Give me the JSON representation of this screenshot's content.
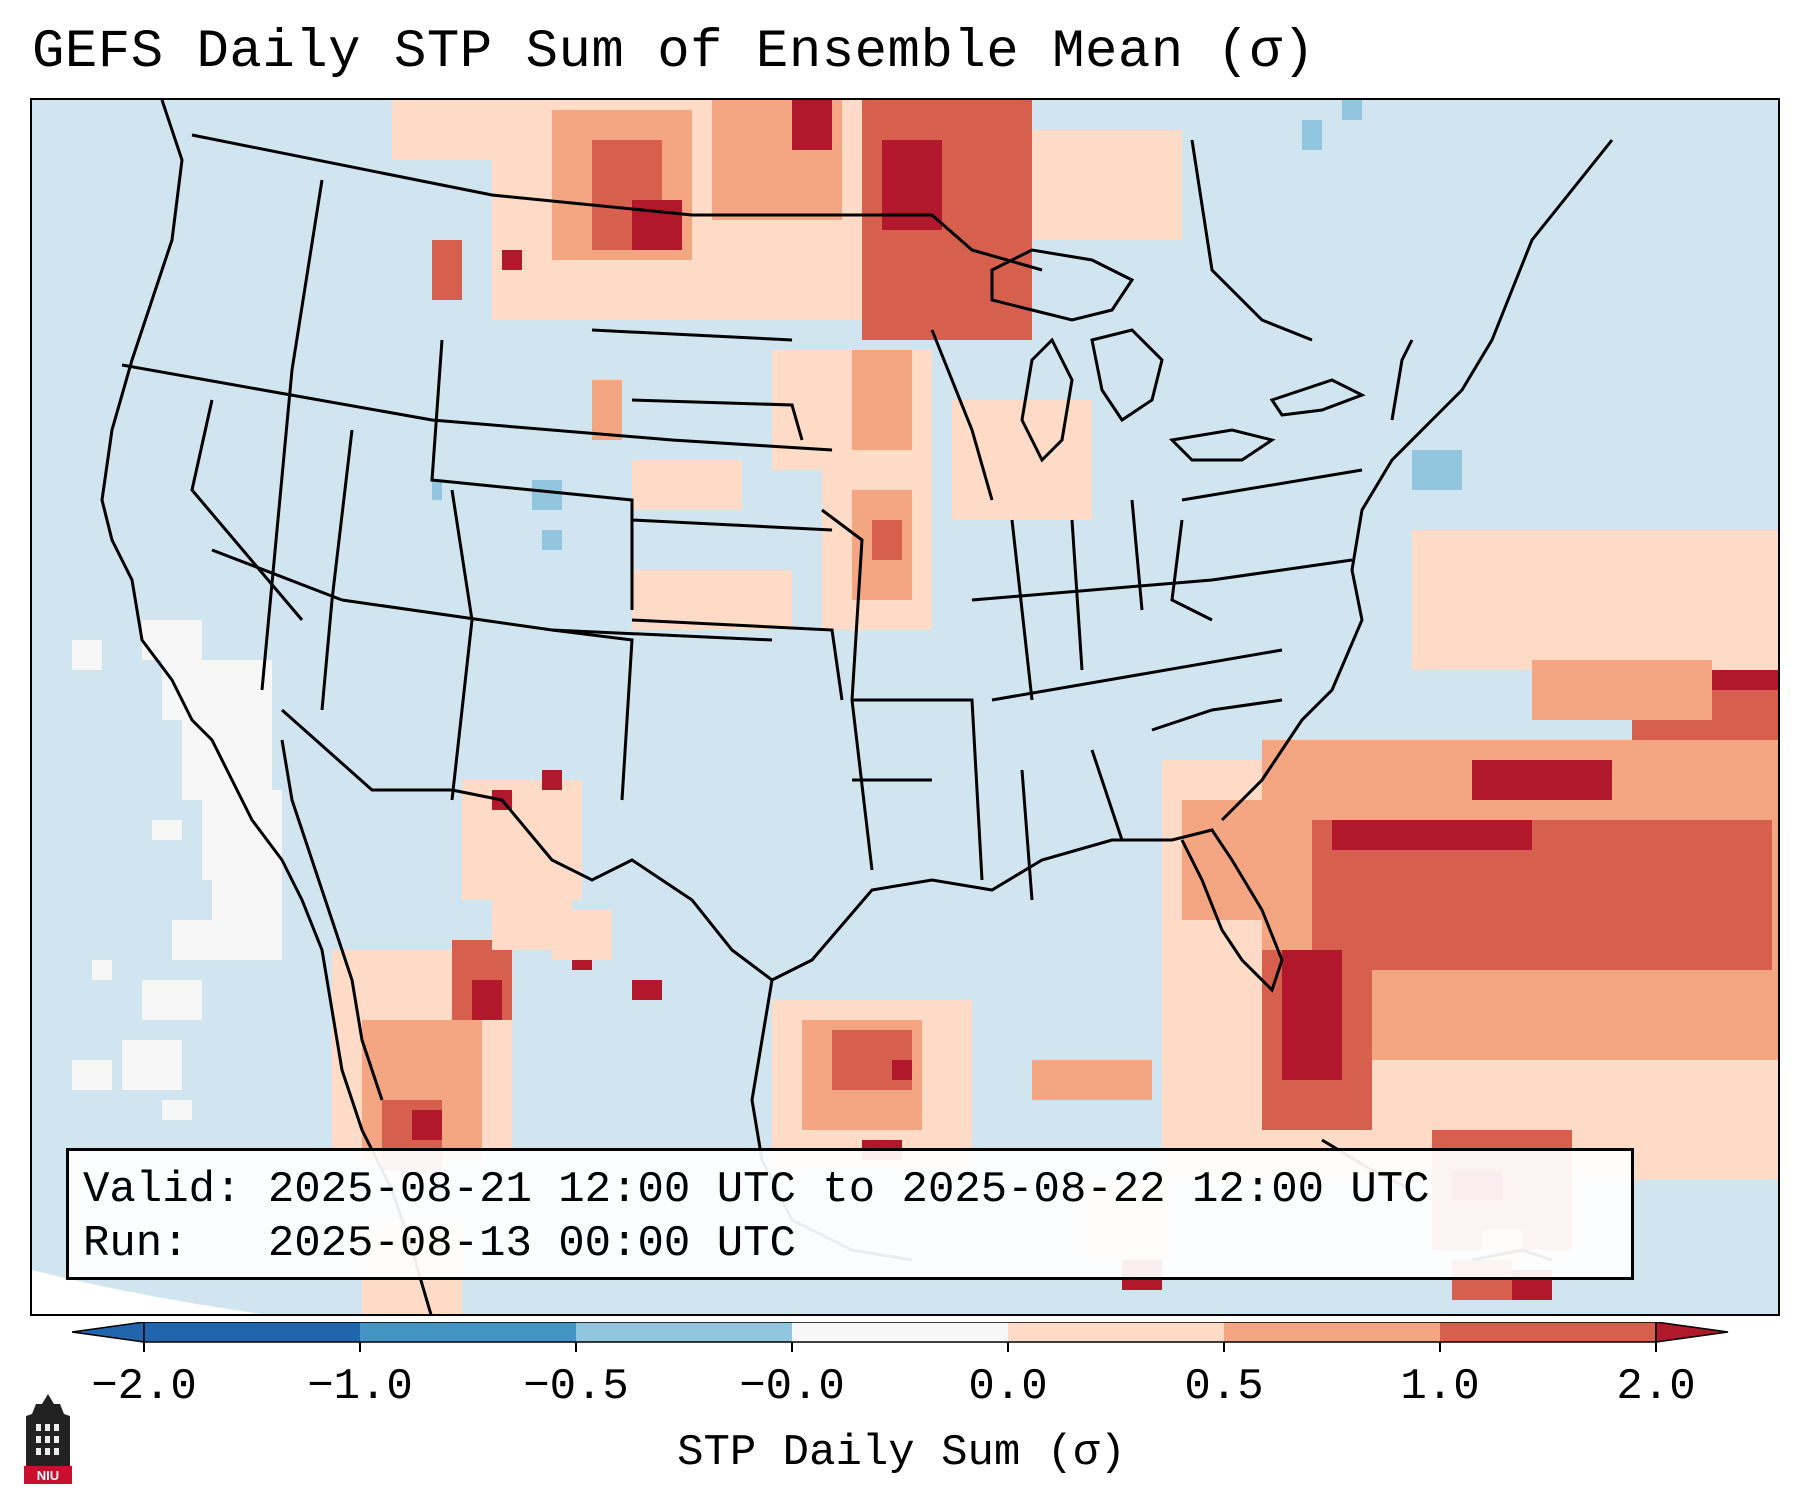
{
  "title": "GEFS Daily STP Sum of Ensemble Mean (σ)",
  "info": {
    "valid_line": "Valid: 2025-08-21 12:00 UTC to 2025-08-22 12:00 UTC",
    "run_line": "Run:   2025-08-13 00:00 UTC"
  },
  "colorbar": {
    "label": "STP Daily Sum (σ)",
    "ticks": [
      "−2.0",
      "−1.0",
      "−0.5",
      "−0.0",
      "0.0",
      "0.5",
      "1.0",
      "2.0"
    ],
    "bins": [
      {
        "range": "≤ -2.0",
        "color": "#2166ac"
      },
      {
        "range": "-2.0 to -1.0",
        "color": "#4393c3"
      },
      {
        "range": "-1.0 to -0.5",
        "color": "#92c5de"
      },
      {
        "range": "-0.5 to -0.0",
        "color": "#d1e5f0"
      },
      {
        "range": "-0.0 to 0.0",
        "color": "#f7f7f7"
      },
      {
        "range": "0.0 to 0.5",
        "color": "#fddbc7"
      },
      {
        "range": "0.5 to 1.0",
        "color": "#f4a582"
      },
      {
        "range": "1.0 to 2.0",
        "color": "#d6604d"
      },
      {
        "range": "≥ 2.0",
        "color": "#b2182b"
      }
    ]
  },
  "logo": {
    "text": "NIU",
    "icon": "university-tower-icon"
  }
}
